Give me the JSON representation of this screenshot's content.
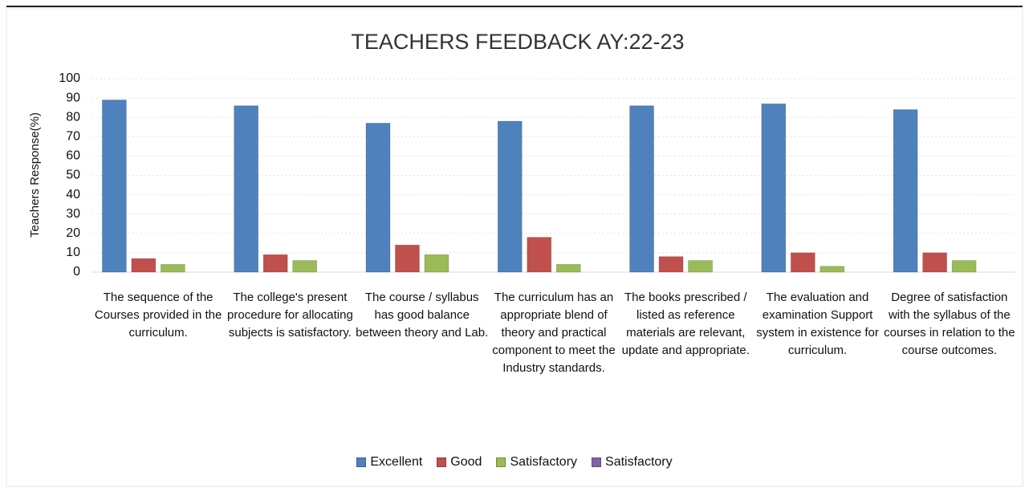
{
  "chart_data": {
    "type": "bar",
    "title": "TEACHERS FEEDBACK AY:22-23",
    "y_label": "Teachers Response(%)",
    "categories": [
      "The sequence of the Courses provided in the curriculum.",
      "The college's present procedure for allocating subjects is satisfactory.",
      "The course  / syllabus has good balance between theory and Lab.",
      "The curriculum has an appropriate blend of theory and practical component to meet the Industry standards.",
      "The books prescribed / listed as reference materials are relevant, update and appropriate.",
      "The evaluation and examination Support system in existence for curriculum.",
      "Degree of satisfaction with the syllabus of the courses in relation to the course outcomes."
    ],
    "series": [
      {
        "name": "Excellent",
        "color": "#4f81bd",
        "values": [
          89,
          86,
          77,
          78,
          86,
          87,
          84
        ]
      },
      {
        "name": "Good",
        "color": "#c0504d",
        "values": [
          7,
          9,
          14,
          18,
          8,
          10,
          10
        ]
      },
      {
        "name": "Satisfactory",
        "color": "#9bbb59",
        "values": [
          4,
          6,
          9,
          4,
          6,
          3,
          6
        ]
      },
      {
        "name": "Satisfactory",
        "color": "#8064a2",
        "values": [
          0,
          0,
          0,
          0,
          0,
          0,
          0
        ]
      }
    ],
    "ylim": [
      0,
      100
    ],
    "yticks": [
      0,
      10,
      20,
      30,
      40,
      50,
      60,
      70,
      80,
      90,
      100
    ],
    "grid": true,
    "legend": "bottom"
  }
}
